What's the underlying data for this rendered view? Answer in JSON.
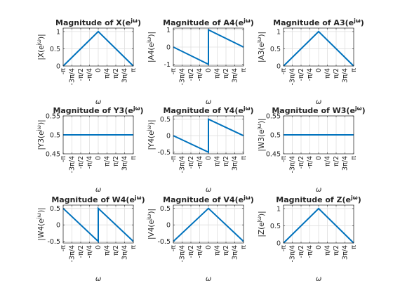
{
  "chart_data": [
    {
      "type": "line",
      "title": "Magnitude of X(e^{jω})",
      "ylabel": "|X(e^{jω})|",
      "xlabel": "ω",
      "ylim": [
        0,
        1.1
      ],
      "yticks": [
        0,
        0.5,
        1
      ],
      "ytick_labels": [
        "0",
        "0.5",
        "1"
      ],
      "x": [
        "-π",
        "0",
        "π"
      ],
      "y": [
        0,
        1,
        0
      ]
    },
    {
      "type": "line",
      "title": "Magnitude of A4(e^{jω})",
      "ylabel": "|A4(e^{jω})|",
      "xlabel": "ω",
      "ylim": [
        -1.1,
        1.1
      ],
      "yticks": [
        -1,
        0,
        1
      ],
      "ytick_labels": [
        "-1",
        "0",
        "1"
      ],
      "x": [
        "-π",
        "0",
        "0",
        "π"
      ],
      "y": [
        0,
        -1,
        1,
        0
      ]
    },
    {
      "type": "line",
      "title": "Magnitude of A3(e^{jω})",
      "ylabel": "|A3(e^{jω})|",
      "xlabel": "ω",
      "ylim": [
        0,
        1.1
      ],
      "yticks": [
        0,
        0.5,
        1
      ],
      "ytick_labels": [
        "0",
        "0.5",
        "1"
      ],
      "x": [
        "-π",
        "0",
        "π"
      ],
      "y": [
        0,
        1,
        0
      ]
    },
    {
      "type": "line",
      "title": "Magnitude of Y3(e^{jω})",
      "ylabel": "|Y3(e^{jω})|",
      "xlabel": "ω",
      "ylim": [
        0.45,
        0.55
      ],
      "yticks": [
        0.45,
        0.5,
        0.55
      ],
      "ytick_labels": [
        "0.45",
        "0.5",
        "0.55"
      ],
      "x": [
        "-π",
        "π"
      ],
      "y": [
        0.5,
        0.5
      ]
    },
    {
      "type": "line",
      "title": "Magnitude of Y4(e^{jω})",
      "ylabel": "|Y4(e^{jω})|",
      "xlabel": "ω",
      "ylim": [
        -0.55,
        0.6
      ],
      "yticks": [
        -0.5,
        0,
        0.5
      ],
      "ytick_labels": [
        "-0.5",
        "0",
        "0.5"
      ],
      "x": [
        "-π",
        "0",
        "0",
        "π"
      ],
      "y": [
        0,
        -0.5,
        0.5,
        0
      ]
    },
    {
      "type": "line",
      "title": "Magnitude of W3(e^{jω})",
      "ylabel": "|W3(e^{jω})|",
      "xlabel": "ω",
      "ylim": [
        0.45,
        0.55
      ],
      "yticks": [
        0.45,
        0.5,
        0.55
      ],
      "ytick_labels": [
        "0.45",
        "0.5",
        "0.55"
      ],
      "x": [
        "-π",
        "π"
      ],
      "y": [
        0.5,
        0.5
      ]
    },
    {
      "type": "line",
      "title": "Magnitude of W4(e^{jω})",
      "ylabel": "|W4(e^{jω})|",
      "xlabel": "ω",
      "ylim": [
        -0.55,
        0.6
      ],
      "yticks": [
        -0.5,
        0,
        0.5
      ],
      "ytick_labels": [
        "-0.5",
        "0",
        "0.5"
      ],
      "x": [
        "-π",
        "0",
        "0",
        "π"
      ],
      "y": [
        0.5,
        -0.5,
        0.5,
        -0.5
      ]
    },
    {
      "type": "line",
      "title": "Magnitude of V4(e^{jω})",
      "ylabel": "|V4(e^{jω})|",
      "xlabel": "ω",
      "ylim": [
        -0.55,
        0.6
      ],
      "yticks": [
        -0.5,
        0,
        0.5
      ],
      "ytick_labels": [
        "-0.5",
        "0",
        "0.5"
      ],
      "x": [
        "-π",
        "0",
        "π"
      ],
      "y": [
        -0.5,
        0.5,
        -0.5
      ]
    },
    {
      "type": "line",
      "title": "Magnitude of Z(e^{jω})",
      "ylabel": "|Z(e^{jω})|",
      "xlabel": "ω",
      "ylim": [
        0,
        1.1
      ],
      "yticks": [
        0,
        0.5,
        1
      ],
      "ytick_labels": [
        "0",
        "0.5",
        "1"
      ],
      "x": [
        "-π",
        "0",
        "π"
      ],
      "y": [
        0,
        1,
        0
      ]
    }
  ],
  "x_axis": {
    "range": [
      "-π",
      "π"
    ],
    "ticks": [
      "-π",
      "-3π/4",
      "-π/2",
      "-π/4",
      "0",
      "π/4",
      "π/2",
      "3π/4",
      "π"
    ]
  },
  "grid": true,
  "line_color": "#0072BD"
}
